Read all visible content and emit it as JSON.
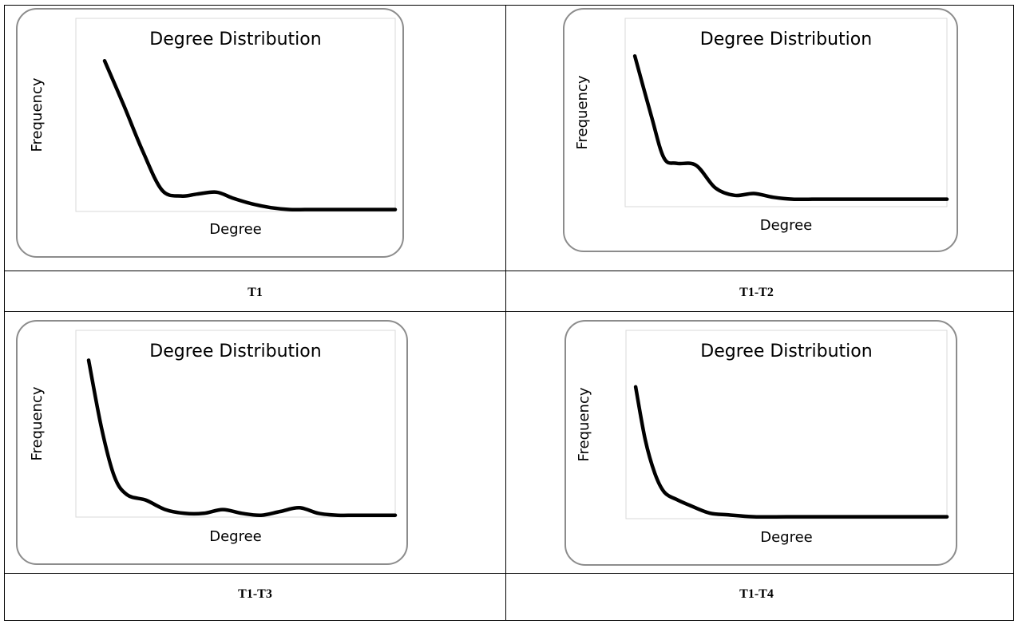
{
  "panels": [
    {
      "label": "T1"
    },
    {
      "label": "T1-T2"
    },
    {
      "label": "T1-T3"
    },
    {
      "label": "T1-T4"
    }
  ],
  "chart_data": [
    {
      "type": "line",
      "title": "Degree Distribution",
      "xlabel": "Degree",
      "ylabel": "Frequency",
      "xlim": [
        0,
        100
      ],
      "ylim": [
        0,
        100
      ],
      "grid": false,
      "ticks": false,
      "series": [
        {
          "color": "#000000",
          "x": [
            9,
            15,
            21,
            27,
            33,
            38,
            44,
            49,
            55,
            61,
            67,
            72,
            78,
            84,
            90,
            100
          ],
          "y": [
            78,
            55,
            31,
            11,
            8,
            9,
            10,
            7,
            4,
            2,
            1,
            1,
            1,
            1,
            1,
            1
          ]
        }
      ]
    },
    {
      "type": "line",
      "title": "Degree Distribution",
      "xlabel": "Degree",
      "ylabel": "Frequency",
      "xlim": [
        0,
        100
      ],
      "ylim": [
        0,
        100
      ],
      "grid": false,
      "ticks": false,
      "series": [
        {
          "color": "#000000",
          "x": [
            3,
            8,
            12,
            16,
            22,
            28,
            34,
            40,
            46,
            52,
            60,
            70,
            80,
            90,
            100
          ],
          "y": [
            80,
            49,
            26,
            23,
            22,
            10,
            6,
            7,
            5,
            4,
            4,
            4,
            4,
            4,
            4
          ]
        }
      ]
    },
    {
      "type": "line",
      "title": "Degree Distribution",
      "xlabel": "Degree",
      "ylabel": "Frequency",
      "xlim": [
        0,
        100
      ],
      "ylim": [
        0,
        100
      ],
      "grid": false,
      "ticks": false,
      "series": [
        {
          "color": "#000000",
          "x": [
            4,
            8,
            12,
            16,
            22,
            28,
            34,
            40,
            46,
            52,
            58,
            64,
            70,
            76,
            82,
            88,
            100
          ],
          "y": [
            84,
            48,
            22,
            12,
            9,
            4,
            2,
            2,
            4,
            2,
            1,
            3,
            5,
            2,
            1,
            1,
            1
          ]
        }
      ]
    },
    {
      "type": "line",
      "title": "Degree Distribution",
      "xlabel": "Degree",
      "ylabel": "Frequency",
      "xlim": [
        0,
        100
      ],
      "ylim": [
        0,
        100
      ],
      "grid": false,
      "ticks": false,
      "series": [
        {
          "color": "#000000",
          "x": [
            3,
            6,
            9,
            12,
            16,
            20,
            26,
            32,
            40,
            50,
            60,
            70,
            80,
            90,
            100
          ],
          "y": [
            70,
            42,
            24,
            14,
            10,
            7,
            3,
            2,
            1,
            1,
            1,
            1,
            1,
            1,
            1
          ]
        }
      ]
    }
  ]
}
